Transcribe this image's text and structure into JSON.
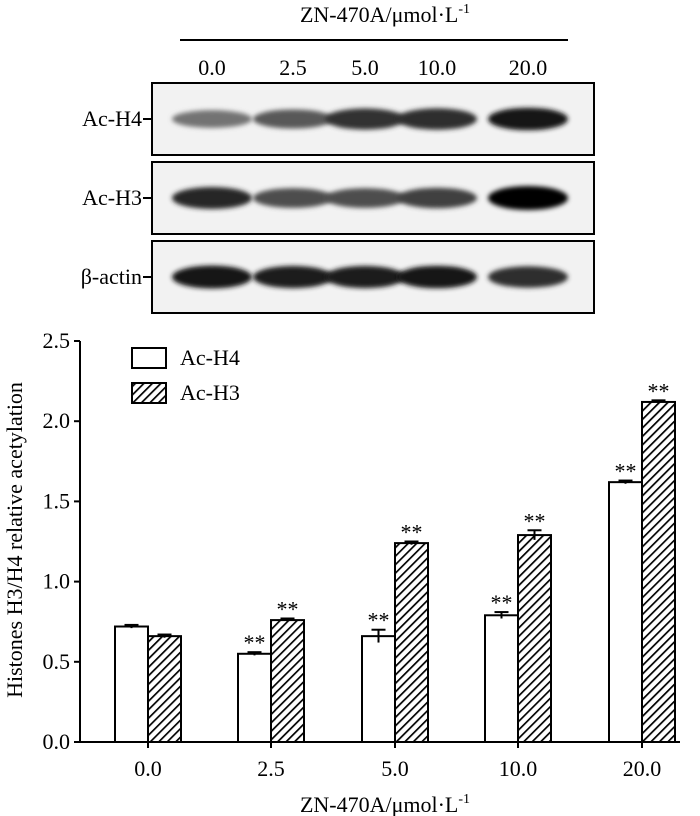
{
  "blot": {
    "treatment_label": "ZN-470A/μmol·L",
    "treatment_label_superscript": "-1",
    "lanes": [
      "0.0",
      "2.5",
      "5.0",
      "10.0",
      "20.0"
    ],
    "rows": [
      {
        "label": "Ac-H4",
        "band_darkness": [
          0.55,
          0.65,
          0.8,
          0.82,
          0.9
        ]
      },
      {
        "label": "Ac-H3",
        "band_darkness": [
          0.85,
          0.7,
          0.7,
          0.75,
          1.0
        ]
      },
      {
        "label": "β-actin",
        "band_darkness": [
          0.92,
          0.88,
          0.88,
          0.9,
          0.82
        ]
      }
    ]
  },
  "chart_data": {
    "type": "bar",
    "title": "",
    "xlabel": "ZN-470A/μmol·L",
    "xlabel_superscript": "-1",
    "ylabel": "Histones H3/H4 relative acetylation",
    "categories": [
      "0.0",
      "2.5",
      "5.0",
      "10.0",
      "20.0"
    ],
    "ylim": [
      0,
      2.5
    ],
    "yticks": [
      "0.0",
      "0.5",
      "1.0",
      "1.5",
      "2.0",
      "2.5"
    ],
    "legend_position": "top-left",
    "series": [
      {
        "name": "Ac-H4",
        "pattern": "open",
        "values": [
          0.72,
          0.55,
          0.66,
          0.79,
          1.62
        ],
        "errors": [
          0.01,
          0.01,
          0.04,
          0.02,
          0.01
        ],
        "significance": [
          "",
          "**",
          "**",
          "**",
          "**"
        ]
      },
      {
        "name": "Ac-H3",
        "pattern": "hatched",
        "values": [
          0.66,
          0.76,
          1.24,
          1.29,
          2.12
        ],
        "errors": [
          0.01,
          0.01,
          0.01,
          0.03,
          0.01
        ],
        "significance": [
          "",
          "**",
          "**",
          "**",
          "**"
        ]
      }
    ]
  }
}
